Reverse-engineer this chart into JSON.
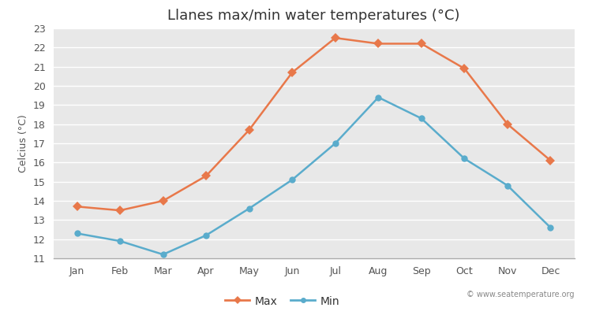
{
  "months": [
    "Jan",
    "Feb",
    "Mar",
    "Apr",
    "May",
    "Jun",
    "Jul",
    "Aug",
    "Sep",
    "Oct",
    "Nov",
    "Dec"
  ],
  "max_temps": [
    13.7,
    13.5,
    14.0,
    15.3,
    17.7,
    20.7,
    22.5,
    22.2,
    22.2,
    20.9,
    18.0,
    16.1
  ],
  "min_temps": [
    12.3,
    11.9,
    11.2,
    12.2,
    13.6,
    15.1,
    17.0,
    19.4,
    18.3,
    16.2,
    14.8,
    12.6
  ],
  "max_color": "#e8784a",
  "min_color": "#5aaccc",
  "title": "Llanes max/min water temperatures (°C)",
  "ylabel": "Celcius (°C)",
  "ylim": [
    11,
    23
  ],
  "yticks": [
    11,
    12,
    13,
    14,
    15,
    16,
    17,
    18,
    19,
    20,
    21,
    22,
    23
  ],
  "fig_background": "#ffffff",
  "plot_background": "#e8e8e8",
  "grid_color": "#ffffff",
  "watermark": "© www.seatemperature.org",
  "legend_max": "Max",
  "legend_min": "Min",
  "title_fontsize": 13,
  "axis_label_fontsize": 9,
  "tick_fontsize": 9,
  "max_marker": "D",
  "min_marker": "o",
  "marker_size_max": 6,
  "marker_size_min": 6,
  "line_width": 1.8
}
